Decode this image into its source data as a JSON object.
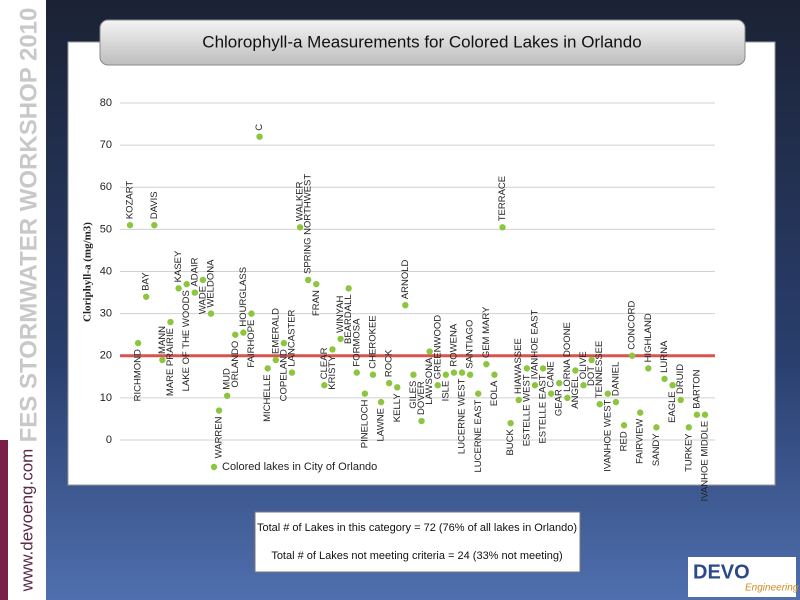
{
  "sidebar": {
    "workshop": "FES STORMWATER WORKSHOP 2010",
    "website": "www.devoeng.com"
  },
  "chart_data": {
    "type": "scatter",
    "title": "Chlorophyll-a Measurements for Colored Lakes in Orlando",
    "y_label": "Cloriphyll-a (mg/m3)",
    "categories": [
      "KOZART",
      "RICHMOND",
      "BAY",
      "DAVIS",
      "MANN",
      "MARE PRAIRIE",
      "KASEY",
      "LAKE OF THE WOODS",
      "ADAIR",
      "WADE",
      "WELDONA",
      "WARREN",
      "MUD",
      "ORLANDO",
      "HOURGLASS",
      "FAIRHOPE",
      "C",
      "MICHELLE",
      "EMERALD",
      "COPELAND",
      "LANCASTER",
      "WALKER",
      "SPRING NORTHWEST",
      "FRAN",
      "CLEAR",
      "KRISTY",
      "WINYAH",
      "BEARDALL",
      "FORMOSA",
      "PINELOCH",
      "CHEROKEE",
      "LAWNE",
      "ROCK",
      "KELLY",
      "ARNOLD",
      "GILES",
      "DOVER",
      "LAWSONA",
      "GREENWOOD",
      "ISLE",
      "ROWENA",
      "LUCERNE WEST",
      "SANTIAGO",
      "LUCERNE EAST",
      "GEM MARY",
      "EOLA",
      "TERRACE",
      "BUCK",
      "HIAWASSEE",
      "ESTELLE WEST",
      "IVANHOE EAST",
      "ESTELLE EAST",
      "CANE",
      "GEAR",
      "LORNA DOONE",
      "ANGEL",
      "OLIVE",
      "DOT",
      "TENNESSEE",
      "IVANHOE WEST",
      "DANIEL",
      "RED",
      "CONCORD",
      "FAIRVIEW",
      "HIGHLAND",
      "SANDY",
      "LURNA",
      "EAGLE",
      "DRUID",
      "TURKEY",
      "BARTON",
      "IVANHOE MIDDLE"
    ],
    "series": [
      {
        "name": "Colored lakes in City of Orlando",
        "color": "#8cc63f",
        "values": [
          51,
          23,
          34,
          51,
          19,
          28,
          36,
          37,
          35,
          38,
          30,
          7,
          10.5,
          25,
          25.5,
          30,
          72,
          17,
          19,
          23,
          16,
          50.5,
          38,
          37,
          13,
          21.5,
          24,
          36,
          16,
          11,
          15.5,
          9,
          13.5,
          12.5,
          32,
          15.5,
          4.5,
          21,
          13,
          15.5,
          16,
          16,
          15.5,
          11,
          18,
          15.5,
          50.5,
          4,
          9.5,
          17,
          13,
          17,
          11,
          13.5,
          10,
          16.5,
          13,
          19,
          8.5,
          11,
          9,
          3.5,
          20,
          6.5,
          17,
          3,
          14.5,
          13,
          9.5,
          3,
          6,
          6
        ]
      }
    ],
    "ylim": [
      0,
      80
    ],
    "yticks": [
      0,
      10,
      20,
      30,
      40,
      50,
      60,
      70,
      80
    ],
    "grid": true,
    "threshold": {
      "value": 20,
      "color": "#d9534f"
    }
  },
  "summary": [
    "Total # of Lakes in this category = 72 (76% of all lakes in Orlando)",
    "Total # of Lakes not meeting criteria = 24 (33% not meeting)"
  ],
  "logo": {
    "name": "DEVO",
    "tagline": "Engineering"
  }
}
